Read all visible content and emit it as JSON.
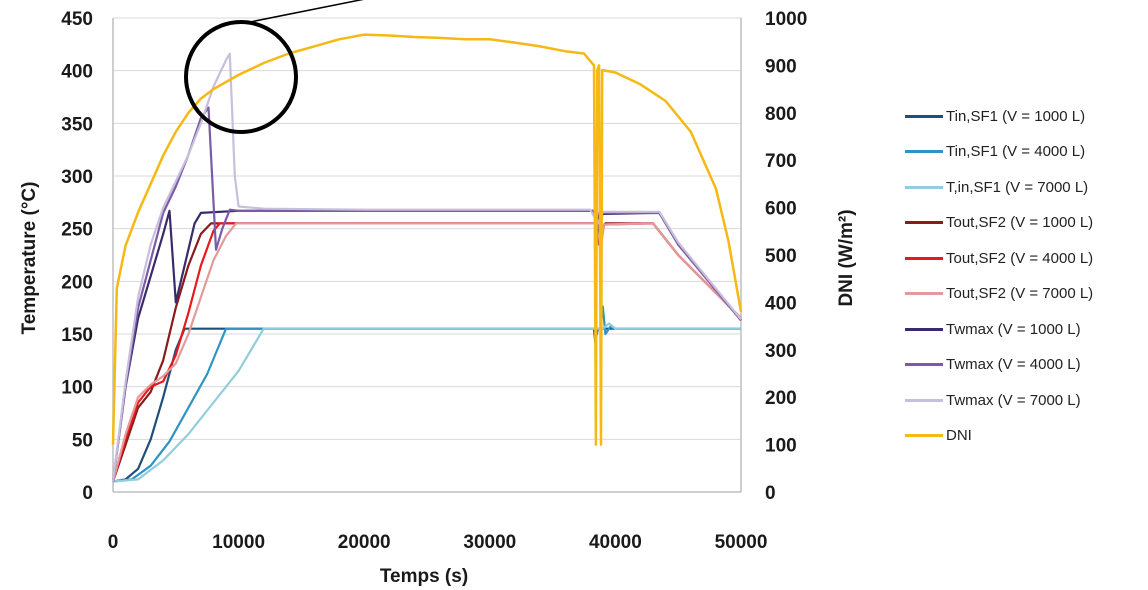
{
  "chart_data": {
    "type": "line",
    "xlabel": "Temps (s)",
    "ylabel": "Temperature (°C)",
    "y2label": "DNI (W/m²)",
    "xlim": [
      0,
      50000
    ],
    "ylim": [
      0,
      450
    ],
    "y2lim": [
      0,
      1000
    ],
    "x_ticks": [
      "0",
      "10000",
      "20000",
      "30000",
      "40000",
      "50000"
    ],
    "y_ticks": [
      "0",
      "50",
      "100",
      "150",
      "200",
      "250",
      "300",
      "350",
      "400",
      "450"
    ],
    "y2_ticks": [
      "0",
      "100",
      "200",
      "300",
      "400",
      "500",
      "600",
      "700",
      "800",
      "900",
      "1000"
    ],
    "grid": "horizontal",
    "legend_position": "right",
    "annotation": "circle highlighting Twmax peak near 9000 s",
    "series": [
      {
        "name": "Tin,SF1 (V = 1000 L)",
        "color": "#1f4e79",
        "axis": "left",
        "points": [
          [
            0,
            10
          ],
          [
            1000,
            12
          ],
          [
            2000,
            22
          ],
          [
            3000,
            50
          ],
          [
            4000,
            90
          ],
          [
            5000,
            135
          ],
          [
            5700,
            155
          ],
          [
            10000,
            155
          ],
          [
            20000,
            155
          ],
          [
            30000,
            155
          ],
          [
            38300,
            155
          ],
          [
            38400,
            142
          ],
          [
            38600,
            155
          ],
          [
            43000,
            155
          ],
          [
            50000,
            155
          ]
        ]
      },
      {
        "name": "Tin,SF1 (V = 4000 L)",
        "color": "#2e94c4",
        "axis": "left",
        "points": [
          [
            0,
            10
          ],
          [
            1500,
            12
          ],
          [
            3000,
            25
          ],
          [
            4500,
            48
          ],
          [
            6000,
            80
          ],
          [
            7500,
            112
          ],
          [
            9000,
            155
          ],
          [
            10000,
            155
          ],
          [
            20000,
            155
          ],
          [
            30000,
            155
          ],
          [
            38800,
            155
          ],
          [
            39000,
            176
          ],
          [
            39200,
            150
          ],
          [
            39600,
            157
          ],
          [
            40000,
            155
          ],
          [
            50000,
            155
          ]
        ]
      },
      {
        "name": "T,in,SF1 (V = 7000 L)",
        "color": "#92cddc",
        "axis": "left",
        "points": [
          [
            0,
            10
          ],
          [
            2000,
            12
          ],
          [
            4000,
            30
          ],
          [
            6000,
            55
          ],
          [
            8000,
            85
          ],
          [
            10000,
            115
          ],
          [
            12000,
            155
          ],
          [
            20000,
            155
          ],
          [
            30000,
            155
          ],
          [
            39000,
            155
          ],
          [
            39500,
            160
          ],
          [
            40000,
            155
          ],
          [
            50000,
            155
          ]
        ]
      },
      {
        "name": "Tout,SF2 (V = 1000 L)",
        "color": "#8b1a1a",
        "axis": "left",
        "points": [
          [
            0,
            10
          ],
          [
            1000,
            45
          ],
          [
            2000,
            80
          ],
          [
            3000,
            95
          ],
          [
            4000,
            125
          ],
          [
            5000,
            175
          ],
          [
            6000,
            215
          ],
          [
            7000,
            245
          ],
          [
            7800,
            255
          ],
          [
            10000,
            255
          ],
          [
            20000,
            255
          ],
          [
            30000,
            255
          ],
          [
            38500,
            255
          ],
          [
            38700,
            235
          ],
          [
            38900,
            250
          ],
          [
            39200,
            255
          ],
          [
            43000,
            255
          ],
          [
            45000,
            225
          ],
          [
            50000,
            165
          ]
        ]
      },
      {
        "name": "Tout,SF2 (V = 4000 L)",
        "color": "#e8191d",
        "axis": "left",
        "points": [
          [
            0,
            10
          ],
          [
            1000,
            50
          ],
          [
            2000,
            85
          ],
          [
            3000,
            100
          ],
          [
            4000,
            105
          ],
          [
            5000,
            130
          ],
          [
            6000,
            170
          ],
          [
            7000,
            215
          ],
          [
            8000,
            248
          ],
          [
            8500,
            255
          ],
          [
            10000,
            255
          ],
          [
            20000,
            255
          ],
          [
            30000,
            255
          ],
          [
            38600,
            255
          ],
          [
            38800,
            232
          ],
          [
            39100,
            254
          ],
          [
            43000,
            255
          ],
          [
            45000,
            225
          ],
          [
            50000,
            165
          ]
        ]
      },
      {
        "name": "Tout,SF2 (V = 7000 L)",
        "color": "#e39a9a",
        "axis": "left",
        "points": [
          [
            0,
            10
          ],
          [
            1000,
            55
          ],
          [
            2000,
            90
          ],
          [
            3000,
            102
          ],
          [
            4000,
            110
          ],
          [
            5000,
            122
          ],
          [
            6000,
            150
          ],
          [
            7000,
            185
          ],
          [
            8000,
            220
          ],
          [
            9000,
            243
          ],
          [
            9800,
            255
          ],
          [
            10000,
            255
          ],
          [
            20000,
            255
          ],
          [
            30000,
            255
          ],
          [
            38600,
            255
          ],
          [
            38800,
            230
          ],
          [
            39100,
            254
          ],
          [
            43000,
            255
          ],
          [
            45000,
            225
          ],
          [
            50000,
            165
          ]
        ]
      },
      {
        "name": "Twmax (V = 1000 L)",
        "color": "#3b2a6b",
        "axis": "left",
        "points": [
          [
            0,
            10
          ],
          [
            1000,
            100
          ],
          [
            2000,
            165
          ],
          [
            3000,
            205
          ],
          [
            4000,
            245
          ],
          [
            4500,
            267
          ],
          [
            5000,
            180
          ],
          [
            5500,
            205
          ],
          [
            6500,
            255
          ],
          [
            7000,
            265
          ],
          [
            10000,
            267
          ],
          [
            20000,
            267
          ],
          [
            30000,
            267
          ],
          [
            38300,
            267
          ],
          [
            38500,
            242
          ],
          [
            38800,
            272
          ],
          [
            39000,
            264
          ],
          [
            43500,
            265
          ],
          [
            45000,
            235
          ],
          [
            50000,
            163
          ]
        ]
      },
      {
        "name": "Twmax (V = 4000 L)",
        "color": "#7a5ba6",
        "axis": "left",
        "points": [
          [
            0,
            10
          ],
          [
            1000,
            100
          ],
          [
            2000,
            175
          ],
          [
            3000,
            220
          ],
          [
            4000,
            265
          ],
          [
            5000,
            290
          ],
          [
            6000,
            320
          ],
          [
            7000,
            355
          ],
          [
            7600,
            365
          ],
          [
            8200,
            230
          ],
          [
            8700,
            250
          ],
          [
            9300,
            268
          ],
          [
            10000,
            267
          ],
          [
            20000,
            267
          ],
          [
            30000,
            267
          ],
          [
            38400,
            267
          ],
          [
            38700,
            250
          ],
          [
            39000,
            265
          ],
          [
            43500,
            265
          ],
          [
            45000,
            235
          ],
          [
            50000,
            163
          ]
        ]
      },
      {
        "name": "Twmax (V = 7000 L)",
        "color": "#c7bfdc",
        "axis": "left",
        "points": [
          [
            0,
            10
          ],
          [
            1000,
            105
          ],
          [
            2000,
            185
          ],
          [
            3000,
            235
          ],
          [
            4000,
            270
          ],
          [
            5000,
            295
          ],
          [
            6000,
            320
          ],
          [
            7000,
            350
          ],
          [
            8000,
            385
          ],
          [
            9000,
            410
          ],
          [
            9300,
            416
          ],
          [
            9700,
            300
          ],
          [
            10000,
            271
          ],
          [
            12000,
            269
          ],
          [
            20000,
            268
          ],
          [
            30000,
            268
          ],
          [
            38000,
            268
          ],
          [
            38600,
            255
          ],
          [
            39000,
            266
          ],
          [
            43500,
            266
          ],
          [
            45000,
            237
          ],
          [
            50000,
            164
          ]
        ]
      },
      {
        "name": "DNI",
        "color": "#f5b814",
        "axis": "right",
        "points": [
          [
            0,
            100
          ],
          [
            300,
            430
          ],
          [
            1000,
            520
          ],
          [
            2000,
            590
          ],
          [
            3000,
            650
          ],
          [
            4000,
            710
          ],
          [
            5000,
            760
          ],
          [
            6000,
            800
          ],
          [
            7000,
            830
          ],
          [
            8000,
            850
          ],
          [
            10000,
            880
          ],
          [
            12000,
            905
          ],
          [
            14000,
            925
          ],
          [
            16000,
            940
          ],
          [
            18000,
            955
          ],
          [
            20000,
            965
          ],
          [
            22000,
            963
          ],
          [
            24000,
            960
          ],
          [
            26000,
            958
          ],
          [
            28000,
            955
          ],
          [
            30000,
            955
          ],
          [
            32000,
            948
          ],
          [
            34000,
            940
          ],
          [
            36000,
            930
          ],
          [
            37500,
            925
          ],
          [
            38300,
            900
          ],
          [
            38450,
            100
          ],
          [
            38550,
            890
          ],
          [
            38700,
            900
          ],
          [
            38850,
            100
          ],
          [
            38950,
            890
          ],
          [
            40000,
            885
          ],
          [
            42000,
            860
          ],
          [
            44000,
            825
          ],
          [
            46000,
            760
          ],
          [
            48000,
            640
          ],
          [
            49000,
            530
          ],
          [
            50000,
            380
          ]
        ]
      }
    ]
  }
}
